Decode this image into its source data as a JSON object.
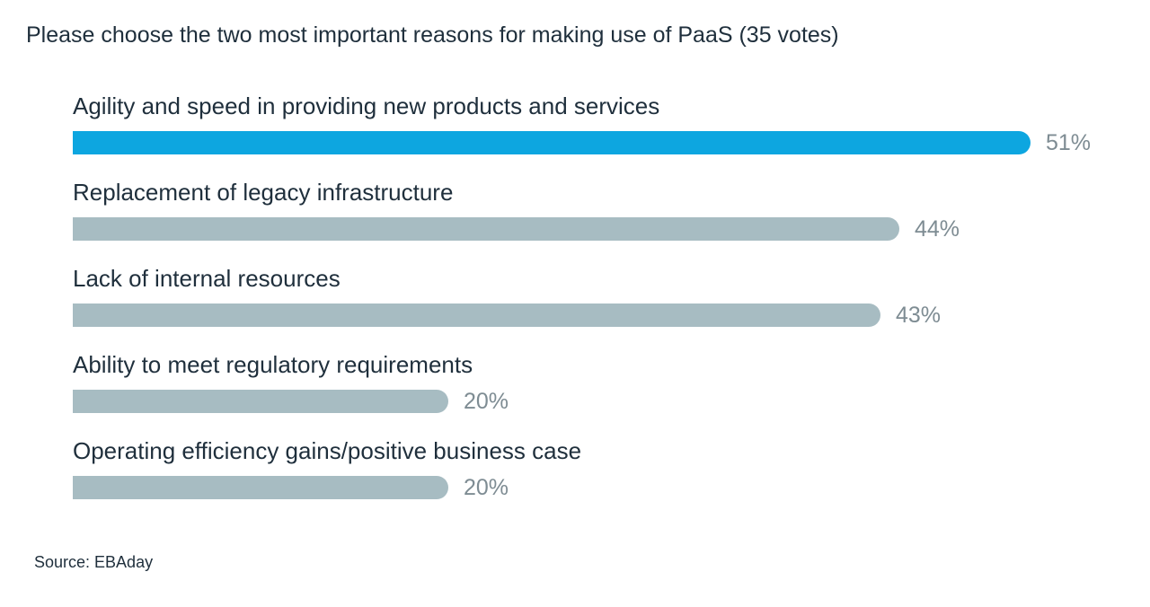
{
  "chart_data": {
    "type": "bar",
    "orientation": "horizontal",
    "title": "Please choose the two most important reasons for making use of PaaS (35 votes)",
    "categories": [
      "Agility and speed in providing new products and services",
      "Replacement of legacy infrastructure",
      "Lack of internal resources",
      "Ability to meet regulatory requirements",
      "Operating efficiency gains/positive business case"
    ],
    "values": [
      51,
      44,
      43,
      20,
      20
    ],
    "value_labels": [
      "51%",
      "44%",
      "43%",
      "20%",
      "20%"
    ],
    "unit": "%",
    "xlim": [
      0,
      51
    ],
    "highlight_index": 0,
    "colors": {
      "highlight": "#0da6e0",
      "default": "#a7bcc2",
      "value_text": "#7e8c93"
    },
    "grid": false,
    "legend": "none"
  },
  "source": "Source: EBAday"
}
